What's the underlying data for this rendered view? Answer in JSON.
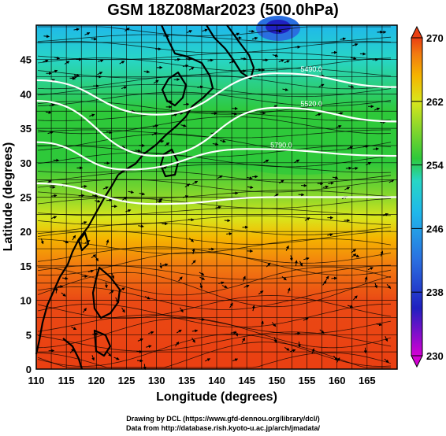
{
  "title": "GSM 18Z08Mar2023 (500.0hPa)",
  "x_axis": {
    "label": "Longitude (degrees)",
    "range": [
      110,
      170
    ],
    "ticks": [
      "110",
      "115",
      "120",
      "125",
      "130",
      "135",
      "140",
      "145",
      "150",
      "155",
      "160",
      "165"
    ],
    "tick_values": [
      110,
      115,
      120,
      125,
      130,
      135,
      140,
      145,
      150,
      155,
      160,
      165
    ]
  },
  "y_axis": {
    "label": "Latitude (degrees)",
    "range": [
      0,
      50
    ],
    "ticks": [
      "0",
      "5",
      "10",
      "15",
      "20",
      "25",
      "30",
      "35",
      "40",
      "45"
    ],
    "tick_values": [
      0,
      5,
      10,
      15,
      20,
      25,
      30,
      35,
      40,
      45
    ]
  },
  "colorbar": {
    "range": [
      230,
      270
    ],
    "tick_labels": [
      "270",
      "262",
      "254",
      "246",
      "238",
      "230"
    ],
    "tick_values": [
      270,
      262,
      254,
      246,
      238,
      230
    ],
    "colors": [
      "#d400d4",
      "#2020c0",
      "#2a6fe0",
      "#1fb8ea",
      "#28d6c6",
      "#2ec93a",
      "#8dd72b",
      "#d9e61c",
      "#f5b400",
      "#f27a10",
      "#ea3f12"
    ]
  },
  "contours": [
    {
      "label": "5490.0",
      "lat_at_lon": [
        [
          110,
          42
        ],
        [
          130,
          37
        ],
        [
          150,
          43
        ],
        [
          170,
          41
        ]
      ]
    },
    {
      "label": "5520.0",
      "lat_at_lon": [
        [
          110,
          39
        ],
        [
          130,
          31
        ],
        [
          150,
          38
        ],
        [
          170,
          36
        ]
      ]
    },
    {
      "label": "5790.0",
      "lat_at_lon": [
        [
          110,
          33
        ],
        [
          125,
          29
        ],
        [
          145,
          32
        ],
        [
          170,
          31
        ]
      ]
    },
    {
      "label": "",
      "lat_at_lon": [
        [
          110,
          27
        ],
        [
          130,
          24
        ],
        [
          150,
          25
        ],
        [
          170,
          25
        ]
      ]
    }
  ],
  "credits": [
    "Drawing by DCL (https://www.gfd-dennou.org/library/dcl/)",
    "Data from http://database.rish.kyoto-u.ac.jp/arch/jmadata/"
  ]
}
